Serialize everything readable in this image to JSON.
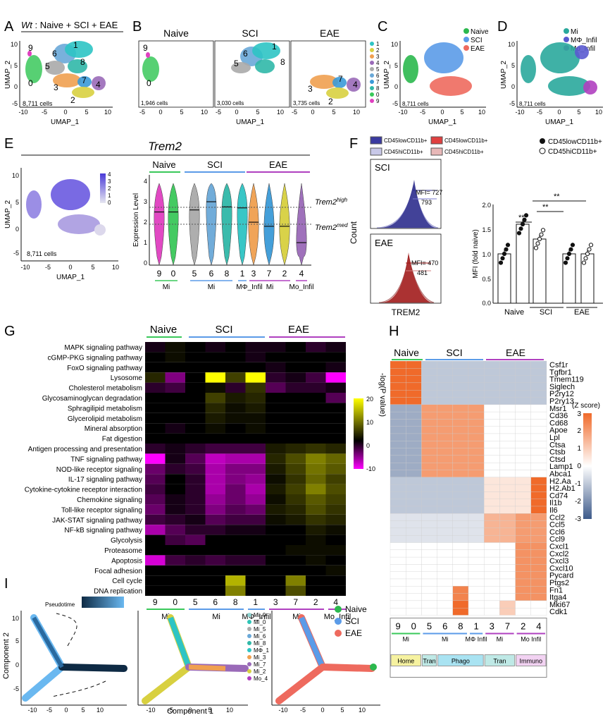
{
  "panels": {
    "A": {
      "letter": "A",
      "title_prefix": "Wt",
      "title_rest": " : Naive + SCI + EAE",
      "cells": "8,711 cells",
      "xlabel": "UMAP_1",
      "ylabel": "UMAP_2",
      "xticks": [
        "-10",
        "-5",
        "0",
        "5",
        "10"
      ],
      "yticks": [
        "10",
        "5",
        "0",
        "-5"
      ],
      "cluster_labels": [
        "9",
        "6",
        "1",
        "5",
        "8",
        "0",
        "3",
        "7",
        "4",
        "2"
      ]
    },
    "B": {
      "letter": "B",
      "titles": [
        "Naive",
        "SCI",
        "EAE"
      ],
      "cells": [
        "1,946 cells",
        "3,030 cells",
        "3,735 cells"
      ],
      "xlabel": "UMAP_1",
      "xticks": [
        "-5",
        "0",
        "5",
        "10"
      ],
      "legend": [
        "1",
        "2",
        "3",
        "4",
        "5",
        "6",
        "7",
        "8",
        "0",
        "9"
      ],
      "legend_colors": [
        "#2ec4c4",
        "#d8d040",
        "#f0a050",
        "#9a6ab8",
        "#aaaaaa",
        "#6aa8d8",
        "#3a9ad8",
        "#30b8a8",
        "#3ac85a",
        "#e040c0"
      ],
      "labels_naive": [
        "9",
        "0"
      ],
      "labels_sci": [
        "6",
        "1",
        "5",
        "8"
      ],
      "labels_eae": [
        "3",
        "7",
        "4",
        "2"
      ]
    },
    "C": {
      "letter": "C",
      "legend": [
        "Naive",
        "SCI",
        "EAE"
      ],
      "legend_colors": [
        "#2bb84e",
        "#5b9be8",
        "#ee6a5e"
      ],
      "cells": "8,711 cells",
      "xlabel": "UMAP_1",
      "ylabel": "UMAP_2",
      "xticks": [
        "-10",
        "-5",
        "0",
        "5",
        "10"
      ],
      "yticks": [
        "10",
        "5",
        "0",
        "-5"
      ]
    },
    "D": {
      "letter": "D",
      "legend": [
        "Mi",
        "MΦ_Infil",
        "Mo_Infil"
      ],
      "legend_colors": [
        "#2aa89c",
        "#5a5ad0",
        "#b040c0"
      ],
      "cells": "8,711 cells",
      "xlabel": "UMAP_1",
      "ylabel": "UMAP_2",
      "xticks": [
        "-10",
        "-5",
        "0",
        "5",
        "10"
      ],
      "yticks": [
        "10",
        "5",
        "0",
        "-5"
      ]
    },
    "E": {
      "letter": "E",
      "gene": "Trem2",
      "cells": "8,711 cells",
      "xlabel": "UMAP_1",
      "ylabel": "UMAP_2",
      "xticks": [
        "-10",
        "-5",
        "0",
        "5",
        "10"
      ],
      "yticks": [
        "10",
        "5",
        "0",
        "-5"
      ],
      "colorbar_ticks": [
        "4",
        "3",
        "2",
        "1",
        "0"
      ],
      "groups": [
        "Naive",
        "SCI",
        "EAE"
      ],
      "violin_ylabel": "Expression Level",
      "violin_yticks": [
        "4",
        "3",
        "2",
        "1",
        "0"
      ],
      "clusters": [
        "9",
        "0",
        "5",
        "6",
        "8",
        "1",
        "3",
        "7",
        "2",
        "4"
      ],
      "group_labels": [
        "Mi",
        "Mi",
        "MΦ_Infil",
        "Mi",
        "Mo_Infil"
      ],
      "high_label": "Trem2",
      "high_sup": "high",
      "med_label": "Trem2",
      "med_sup": "med"
    },
    "F": {
      "letter": "F",
      "legend": [
        "CD45lowCD11b+",
        "CD45hiCD11b+",
        "CD45lowCD11b+",
        "CD45hiCD11b+"
      ],
      "hist_ylabel": "Count",
      "hist_xlabel": "TREM2",
      "sci_label": "SCI",
      "eae_label": "EAE",
      "sci_mfi": "MFI= 727",
      "sci_mfi2": "793",
      "eae_mfi": "MFI= 470",
      "eae_mfi2": "481",
      "bar_legend": [
        "CD45lowCD11b+",
        "CD45hiCD11b+"
      ],
      "bar_ylabel": "MFI (fold naive)",
      "bar_yticks": [
        "2.0",
        "1.5",
        "1.0",
        "0.5",
        "0.0"
      ],
      "bar_groups": [
        "Naive",
        "SCI",
        "EAE"
      ],
      "sig": [
        "**",
        "**",
        "**"
      ]
    },
    "G": {
      "letter": "G",
      "groups": [
        "Naive",
        "SCI",
        "EAE"
      ],
      "rows": [
        "MAPK signaling pathway",
        "cGMP-PKG signaling pathway",
        "FoxO signaling pathway",
        "Lysosome",
        "Cholesterol metabolism",
        "Glycosaminoglycan degradation",
        "Sphragilipid metabolism",
        "Glycerolipid metabolism",
        "Mineral absorption",
        "Fat digestion",
        "Antigen processing and presentation",
        "TNF signaling pathway",
        "NOD-like receptor signaling",
        "IL-17 signaling pathway",
        "Cytokine-cytokine receptor interaction",
        "Chemokine signaling",
        "Toll-like receptor signaling",
        "JAK-STAT signaling pathway",
        "NF-kB signaling pathway",
        "Glycolysis",
        "Proteasome",
        "Apoptosis",
        "Focal adhesion",
        "Cell cycle",
        "DNA replication"
      ],
      "clusters": [
        "9",
        "0",
        "5",
        "6",
        "8",
        "1",
        "3",
        "7",
        "2",
        "4"
      ],
      "group_labels": [
        "Mi",
        "Mi",
        "MΦ_Infil",
        "Mi",
        "Mo_Infil"
      ],
      "colorbar_title": "-log(P value)",
      "colorbar_ticks": [
        "20",
        "10",
        "0",
        "-10"
      ]
    },
    "H": {
      "letter": "H",
      "groups": [
        "Naive",
        "SCI",
        "EAE"
      ],
      "genes": [
        "Csf1r",
        "Tgfbr1",
        "Tmem119",
        "Siglech",
        "P2ry12",
        "P2ry13",
        "Msr1",
        "Cd36",
        "Cd68",
        "Apoe",
        "Lpl",
        "Ctsa",
        "Ctsb",
        "Ctsd",
        "Lamp1",
        "Abca1",
        "H2.Aa",
        "H2.Ab1",
        "Cd74",
        "Il1b",
        "Il6",
        "Ccl2",
        "Ccl5",
        "Ccl6",
        "Ccl9",
        "Cxcl1",
        "Cxcl2",
        "Cxcl3",
        "Cxcl10",
        "Pycard",
        "Ptgs2",
        "Fn1",
        "Itga4",
        "Mki67",
        "Cdk1"
      ],
      "clusters": [
        "9",
        "0",
        "5",
        "6",
        "8",
        "1",
        "3",
        "7",
        "2",
        "4"
      ],
      "group_labels": [
        "Mi",
        "Mi",
        "MΦ Infil",
        "Mi",
        "Mo Infil"
      ],
      "states": [
        "Home",
        "Tran",
        "Phago",
        "Tran",
        "Immuno"
      ],
      "state_colors": [
        "#f6f2a0",
        "#bfe9e6",
        "#a9e3f2",
        "#bfe9e6",
        "#f2d2f2"
      ],
      "colorbar_title": "(Z score)",
      "colorbar_ticks": [
        "3",
        "2",
        "1",
        "0",
        "-1",
        "-2",
        "-3"
      ]
    },
    "I": {
      "letter": "I",
      "pseudotime": "Pseudotime",
      "xlabel": "Component 1",
      "ylabel": "Component 2",
      "xticks": [
        "-10",
        "-5",
        "0",
        "5",
        "10"
      ],
      "yticks": [
        "10",
        "5",
        "0",
        "-5"
      ],
      "legend": [
        "Mi_9",
        "Mi_0",
        "Mi_5",
        "Mi_6",
        "Mi_8",
        "MΦ_1",
        "Mi_3",
        "Mi_7",
        "Mi_2",
        "Mo_4"
      ],
      "legend_colors": [
        "#8fd3d0",
        "#2ec4b6",
        "#aaaaaa",
        "#6aa8d8",
        "#30b8a8",
        "#2ec4c4",
        "#f0a050",
        "#9a6ab8",
        "#d8d040",
        "#b040c0"
      ],
      "cond_legend": [
        "Naive",
        "SCI",
        "EAE"
      ],
      "cond_colors": [
        "#2bb84e",
        "#5b9be8",
        "#ee6a5e"
      ]
    }
  }
}
